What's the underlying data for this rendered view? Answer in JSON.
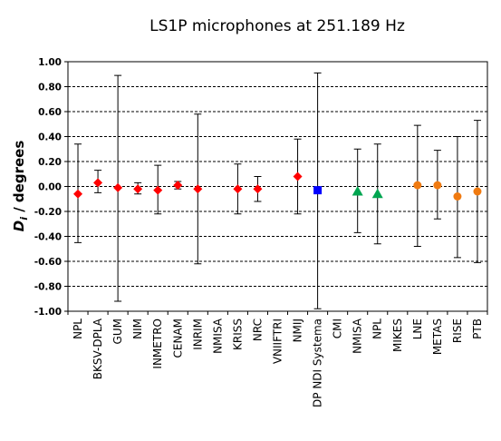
{
  "chart_data": {
    "type": "scatter",
    "title": "LS1P microphones at 251.189  Hz",
    "ylabel_main": "D",
    "ylabel_sub": "i",
    "ylabel_rest": " / degrees",
    "xlabel": "",
    "ylim": [
      -1.0,
      1.0
    ],
    "y_ticks": [
      "1.00",
      "0.80",
      "0.60",
      "0.40",
      "0.20",
      "0.00",
      "-0.20",
      "-0.40",
      "-0.60",
      "-0.80",
      "-1.00"
    ],
    "y_tick_values": [
      1.0,
      0.8,
      0.6,
      0.4,
      0.2,
      0.0,
      -0.2,
      -0.4,
      -0.6,
      -0.8,
      -1.0
    ],
    "grid": "horizontal-dashed",
    "categories": [
      "NPL",
      "BKSV-DPLA",
      "GUM",
      "NIM",
      "INMETRO",
      "CENAM",
      "INRIM",
      "NMISA",
      "KRISS",
      "NRC",
      "VNIIFTRI",
      "NMIJ",
      "DP NDI Systema",
      "CMI",
      "NMISA",
      "NPL",
      "MIKES",
      "LNE",
      "METAS",
      "RISE",
      "PTB"
    ],
    "series": [
      {
        "marker": "diamond",
        "color": "#ff0000",
        "points": [
          {
            "category_index": 0,
            "value": -0.06,
            "low": -0.45,
            "high": 0.34
          },
          {
            "category_index": 1,
            "value": 0.03,
            "low": -0.05,
            "high": 0.13
          },
          {
            "category_index": 2,
            "value": -0.01,
            "low": -0.92,
            "high": 0.89
          },
          {
            "category_index": 3,
            "value": -0.02,
            "low": -0.06,
            "high": 0.03
          },
          {
            "category_index": 4,
            "value": -0.03,
            "low": -0.22,
            "high": 0.17
          },
          {
            "category_index": 5,
            "value": 0.01,
            "low": -0.02,
            "high": 0.04
          },
          {
            "category_index": 6,
            "value": -0.02,
            "low": -0.62,
            "high": 0.58
          },
          {
            "category_index": 8,
            "value": -0.02,
            "low": -0.22,
            "high": 0.18
          },
          {
            "category_index": 9,
            "value": -0.02,
            "low": -0.12,
            "high": 0.08
          },
          {
            "category_index": 11,
            "value": 0.08,
            "low": -0.22,
            "high": 0.38
          }
        ]
      },
      {
        "marker": "square",
        "color": "#0000ff",
        "points": [
          {
            "category_index": 12,
            "value": -0.03,
            "low": -0.98,
            "high": 0.91
          }
        ]
      },
      {
        "marker": "triangle",
        "color": "#00a550",
        "points": [
          {
            "category_index": 14,
            "value": -0.04,
            "low": -0.37,
            "high": 0.3
          },
          {
            "category_index": 15,
            "value": -0.06,
            "low": -0.46,
            "high": 0.34
          }
        ]
      },
      {
        "marker": "circle",
        "color": "#f07a10",
        "points": [
          {
            "category_index": 17,
            "value": 0.01,
            "low": -0.48,
            "high": 0.49
          },
          {
            "category_index": 18,
            "value": 0.01,
            "low": -0.26,
            "high": 0.29
          },
          {
            "category_index": 19,
            "value": -0.08,
            "low": -0.57,
            "high": 0.4
          },
          {
            "category_index": 20,
            "value": -0.04,
            "low": -0.61,
            "high": 0.53
          }
        ]
      }
    ]
  }
}
